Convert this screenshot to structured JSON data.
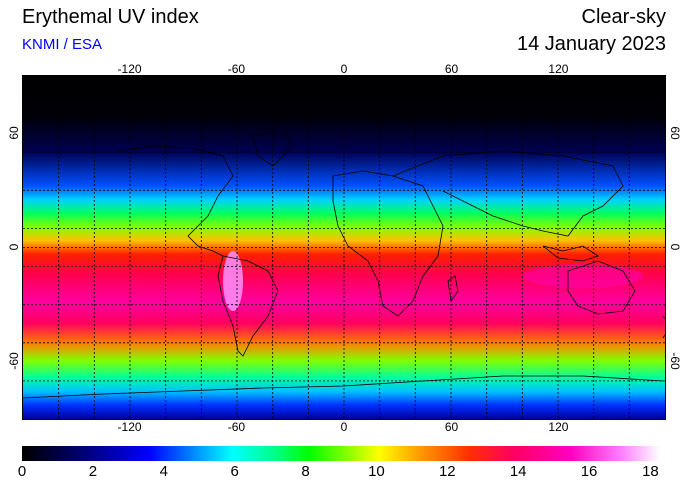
{
  "header": {
    "title": "Erythemal UV index",
    "credit": "KNMI / ESA",
    "sky_condition": "Clear-sky",
    "date": "14 January 2023"
  },
  "map": {
    "lon_ticks": [
      "-120",
      "-60",
      "0",
      "60",
      "120"
    ],
    "lat_ticks": [
      "60",
      "0",
      "-60"
    ],
    "lon_range": [
      -180,
      180
    ],
    "lat_range": [
      -90,
      90
    ],
    "grid": "dashed, every 20 degrees"
  },
  "colorbar": {
    "min": 0,
    "max": 18,
    "tick_labels": [
      "0",
      "2",
      "4",
      "6",
      "8",
      "10",
      "12",
      "14",
      "16",
      "18"
    ]
  }
}
